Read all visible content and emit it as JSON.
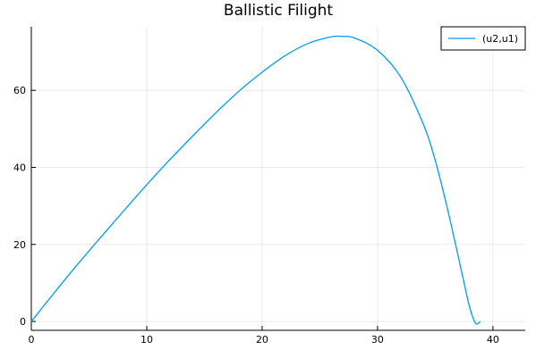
{
  "chart_data": {
    "type": "line",
    "title": "Ballistic Filight",
    "xlabel": "",
    "ylabel": "",
    "xlim": [
      0,
      42.8
    ],
    "ylim": [
      -2.3,
      76.5
    ],
    "xticks": [
      0,
      10,
      20,
      30,
      40
    ],
    "yticks": [
      0,
      20,
      40,
      60
    ],
    "xtick_labels": [
      "0",
      "10",
      "20",
      "30",
      "40"
    ],
    "ytick_labels": [
      "0",
      "20",
      "40",
      "60"
    ],
    "grid": true,
    "legend_position": "top-right",
    "series": [
      {
        "name": "(u2,u1)",
        "color": "#009af9",
        "x": [
          0,
          2,
          4,
          6,
          8,
          10,
          12,
          14,
          16,
          18,
          20,
          22,
          24,
          26,
          27,
          28,
          30,
          32,
          34,
          35,
          36,
          37,
          37.5,
          38,
          38.5,
          38.9
        ],
        "y": [
          0,
          7.5,
          14.8,
          21.8,
          28.7,
          35.5,
          42.0,
          48.2,
          54.2,
          59.8,
          64.7,
          69.0,
          72.2,
          73.9,
          74.0,
          73.6,
          70.4,
          63.5,
          51.0,
          41.8,
          30.0,
          16.8,
          10.0,
          3.5,
          -0.5,
          0
        ]
      }
    ]
  }
}
